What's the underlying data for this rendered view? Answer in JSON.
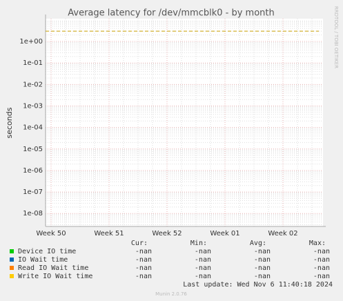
{
  "chart_data": {
    "type": "line",
    "title": "Average latency for /dev/mmcblk0 - by month",
    "y_label": "seconds",
    "log_scale": true,
    "grid": true,
    "ylim": [
      2.5e-09,
      11.5
    ],
    "yticks": [
      {
        "value": 1,
        "label": "1e+00"
      },
      {
        "value": 0.1,
        "label": "1e-01"
      },
      {
        "value": 0.01,
        "label": "1e-02"
      },
      {
        "value": 0.001,
        "label": "1e-03"
      },
      {
        "value": 0.0001,
        "label": "1e-04"
      },
      {
        "value": 1e-05,
        "label": "1e-05"
      },
      {
        "value": 1e-06,
        "label": "1e-06"
      },
      {
        "value": 1e-07,
        "label": "1e-07"
      },
      {
        "value": 1e-08,
        "label": "1e-08"
      }
    ],
    "xticks": [
      "Week 50",
      "Week 51",
      "Week 52",
      "Week 01",
      "Week 02"
    ],
    "threshold_line": {
      "value": 3,
      "color": "#c8a000"
    },
    "legend_headers": [
      "Cur:",
      "Min:",
      "Avg:",
      "Max:"
    ],
    "series": [
      {
        "name": "Device IO time",
        "color": "#00cc00",
        "stats": [
          "-nan",
          "-nan",
          "-nan",
          "-nan"
        ]
      },
      {
        "name": "IO Wait time",
        "color": "#0066b3",
        "stats": [
          "-nan",
          "-nan",
          "-nan",
          "-nan"
        ]
      },
      {
        "name": "Read IO Wait time",
        "color": "#ff8000",
        "stats": [
          "-nan",
          "-nan",
          "-nan",
          "-nan"
        ]
      },
      {
        "name": "Write IO Wait time",
        "color": "#ffcc00",
        "stats": [
          "-nan",
          "-nan",
          "-nan",
          "-nan"
        ]
      }
    ],
    "last_update": "Last update: Wed Nov  6 11:40:18 2024",
    "watermark": "RRDTOOL / TOBI OETIKER",
    "footer": "Munin 2.0.76"
  }
}
